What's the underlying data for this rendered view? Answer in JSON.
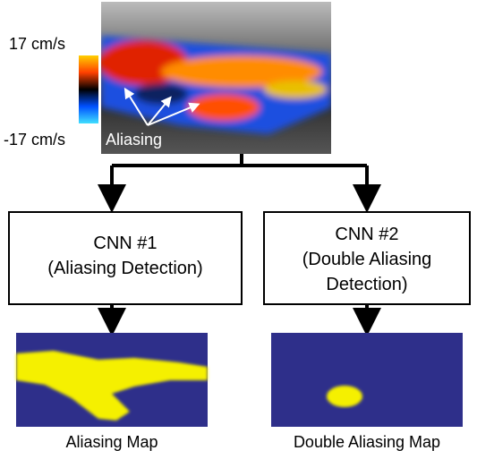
{
  "colorbar": {
    "max_label": "17 cm/s",
    "min_label": "-17 cm/s"
  },
  "annotation": "Aliasing",
  "nodes": [
    {
      "title": "CNN #1",
      "lines": [
        "(Aliasing Detection)"
      ]
    },
    {
      "title": "CNN #2",
      "lines": [
        "(Double Aliasing",
        "Detection)"
      ]
    }
  ],
  "outputs": [
    "Aliasing Map",
    "Double Aliasing Map"
  ]
}
